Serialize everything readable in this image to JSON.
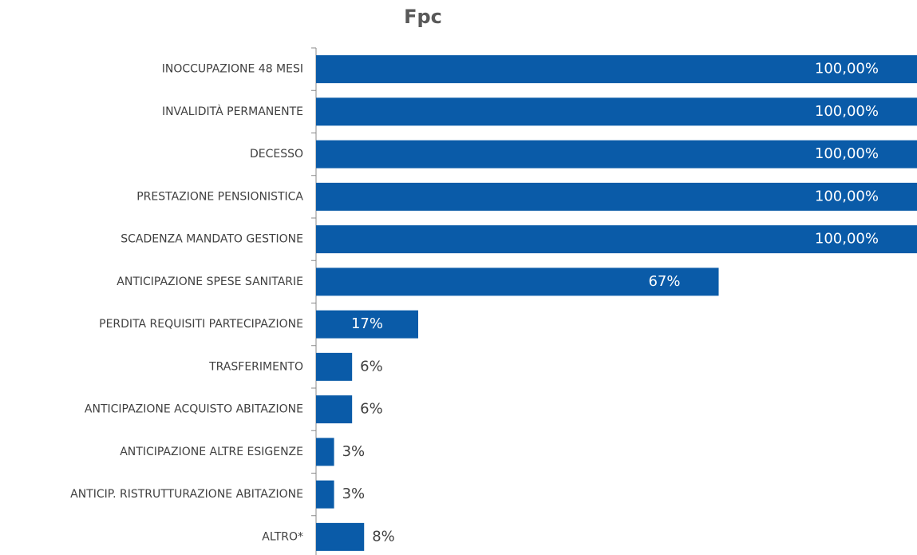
{
  "chart_data": {
    "type": "barh",
    "title": "Fpc",
    "categories": [
      "INOCCUPAZIONE 48 MESI",
      "INVALIDITÀ PERMANENTE",
      "DECESSO",
      "PRESTAZIONE PENSIONISTICA",
      "SCADENZA MANDATO GESTIONE",
      "ANTICIPAZIONE SPESE SANITARIE",
      "PERDITA REQUISITI PARTECIPAZIONE",
      "TRASFERIMENTO",
      "ANTICIPAZIONE ACQUISTO ABITAZIONE",
      "ANTICIPAZIONE ALTRE ESIGENZE",
      "ANTICIP. RISTRUTTURAZIONE ABITAZIONE",
      "ALTRO*"
    ],
    "values": [
      100,
      100,
      100,
      100,
      100,
      67,
      17,
      6,
      6,
      3,
      3,
      8
    ],
    "value_labels": [
      "100,00%",
      "100,00%",
      "100,00%",
      "100,00%",
      "100,00%",
      "67%",
      "17%",
      "6%",
      "6%",
      "3%",
      "3%",
      "8%"
    ],
    "color": "#0a5ba8",
    "xlim": [
      0,
      100
    ]
  }
}
